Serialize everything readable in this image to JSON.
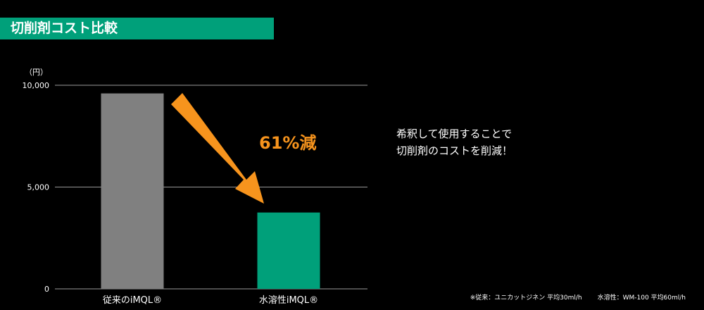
{
  "header": {
    "title": "切削剤コスト比較"
  },
  "chart_data": {
    "type": "bar",
    "y_unit_label": "（円）",
    "ylim": [
      0,
      10000
    ],
    "y_ticks": [
      {
        "value": 0,
        "label": "0"
      },
      {
        "value": 5000,
        "label": "5,000"
      },
      {
        "value": 10000,
        "label": "10,000"
      }
    ],
    "grid": true,
    "categories": [
      "従来のiMQL®",
      "水溶性iMQL®"
    ],
    "values": [
      9600,
      3750
    ],
    "bar_colors": [
      "#808080",
      "#00a07a"
    ],
    "annotation": {
      "label": "61%減",
      "color": "#f7941d"
    }
  },
  "message": {
    "line1": "希釈して使用することで",
    "line2": "切削剤のコストを削減！"
  },
  "footnote": {
    "part1": "※従来：ユニカットジネン 平均30ml/h",
    "part2": "水溶性：WM-100 平均60ml/h"
  }
}
